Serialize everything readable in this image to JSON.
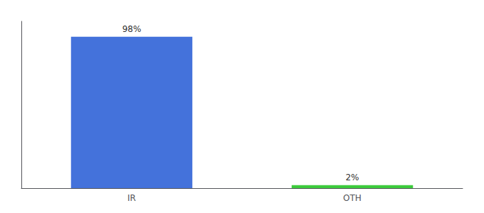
{
  "chart_data": {
    "type": "bar",
    "categories": [
      "IR",
      "OTH"
    ],
    "values": [
      98,
      2
    ],
    "value_labels": [
      "98%",
      "2%"
    ],
    "colors": [
      "#4472db",
      "#3dcc3d"
    ],
    "ylim": [
      0,
      108
    ],
    "tick_labels": "x",
    "data_labels": true,
    "grid": false
  }
}
